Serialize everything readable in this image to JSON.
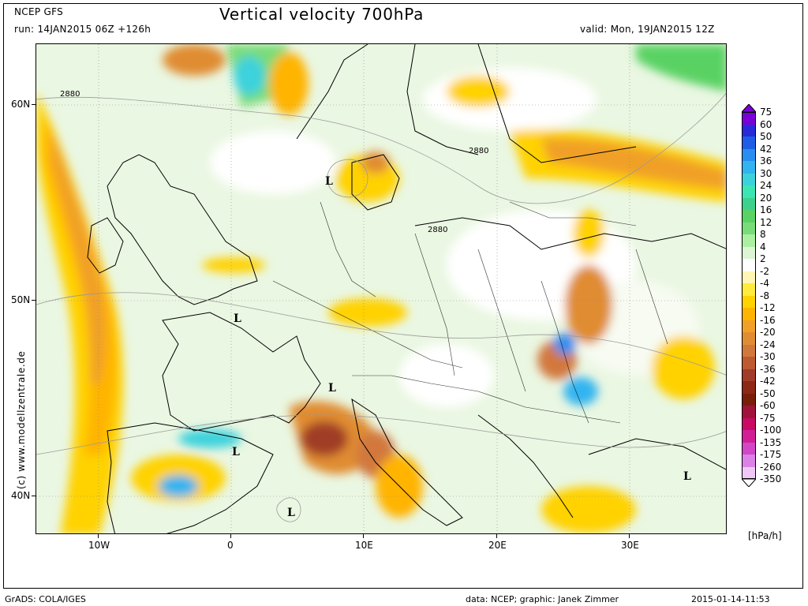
{
  "header": {
    "model": "NCEP GFS",
    "run": "run: 14JAN2015 06Z +126h",
    "title": "Vertical velocity 700hPa",
    "valid": "valid: Mon, 19JAN2015 12Z"
  },
  "side_credit": "(c) www.modellzentrale.de",
  "axes": {
    "lat_labels": [
      "60N",
      "50N",
      "40N"
    ],
    "lon_labels": [
      "10W",
      "0",
      "10E",
      "20E",
      "30E"
    ]
  },
  "map": {
    "contour_labels": [
      "2880",
      "2880",
      "2880"
    ],
    "low_markers": [
      "L",
      "L",
      "L",
      "L",
      "L",
      "L"
    ]
  },
  "colorbar": {
    "units": "[hPa/h]",
    "labels": [
      "75",
      "60",
      "50",
      "42",
      "36",
      "30",
      "24",
      "20",
      "16",
      "12",
      "8",
      "4",
      "2",
      "-2",
      "-4",
      "-8",
      "-12",
      "-16",
      "-20",
      "-24",
      "-30",
      "-36",
      "-42",
      "-50",
      "-60",
      "-75",
      "-100",
      "-135",
      "-175",
      "-260",
      "-350"
    ],
    "colors": [
      "#7a00d8",
      "#2a2ad8",
      "#1e5ee6",
      "#2a8ef0",
      "#32b4f0",
      "#3cd2dc",
      "#3ce6b4",
      "#3cd28c",
      "#5ad264",
      "#78dc78",
      "#aaf0a0",
      "#dcf5d2",
      "#ffffff",
      "#fff6b4",
      "#ffeb3c",
      "#ffd200",
      "#ffb400",
      "#f0a028",
      "#e08c32",
      "#d2783c",
      "#be5a32",
      "#a03c28",
      "#8c2814",
      "#781e0a",
      "#a0143c",
      "#c80a64",
      "#d21e96",
      "#d246c8",
      "#dc82e6",
      "#f0c8f5"
    ]
  },
  "footer": {
    "left": "GrADS: COLA/IGES",
    "center": "data: NCEP; graphic: Janek Zimmer",
    "right": "2015-01-14-11:53"
  }
}
